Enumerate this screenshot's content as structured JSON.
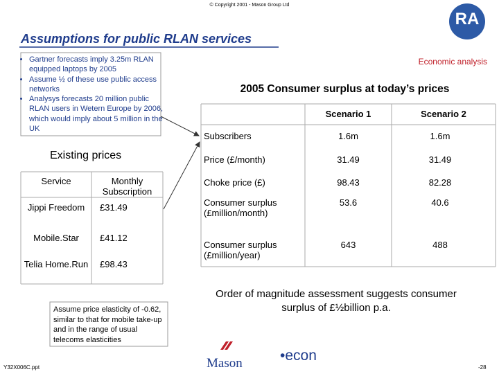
{
  "header": {
    "copyright": "© Copyright 2001 - Mason Group Ltd",
    "logo": "RA",
    "title": "Assumptions for public RLAN services"
  },
  "bullets": [
    "Gartner forecasts imply 3.25m RLAN equipped laptops by 2005",
    "Assume ½ of these use public access networks",
    "Analysys forecasts 20 million public RLAN users in Wetern Europe by 2006, which would imply about 5 million in the UK"
  ],
  "existing": {
    "title": "Existing prices",
    "header": [
      "Service",
      "Monthly Subscription"
    ],
    "rows": [
      [
        "Jippi Freedom",
        "£31.49"
      ],
      [
        "Mobile.Star",
        "£41.12"
      ],
      [
        "Telia Home.Run",
        "£98.43"
      ]
    ]
  },
  "note": "Assume price elasticity of -0.62, similar to that for mobile take-up and in the range of usual telecoms elasticities",
  "analysis": {
    "tag": "Economic analysis",
    "title": "2005 Consumer surplus at today’s prices",
    "header": [
      "Scenario 1",
      "Scenario 2"
    ],
    "rows": [
      [
        "Subscribers",
        "1.6m",
        "1.6m"
      ],
      [
        "Price (£/month)",
        "31.49",
        "31.49"
      ],
      [
        "Choke price (£)",
        "98.43",
        "82.28"
      ],
      [
        "Consumer surplus (£million/month)",
        "53.6",
        "40.6"
      ],
      [
        "Consumer surplus (£million/year)",
        "643",
        "488"
      ]
    ]
  },
  "conclusion": "Order of magnitude assessment suggests consumer surplus of £½billion p.a.",
  "footer": {
    "file": "Y32X006C.ppt",
    "mason": "Mason",
    "econ": "•econ",
    "page": "-28"
  }
}
